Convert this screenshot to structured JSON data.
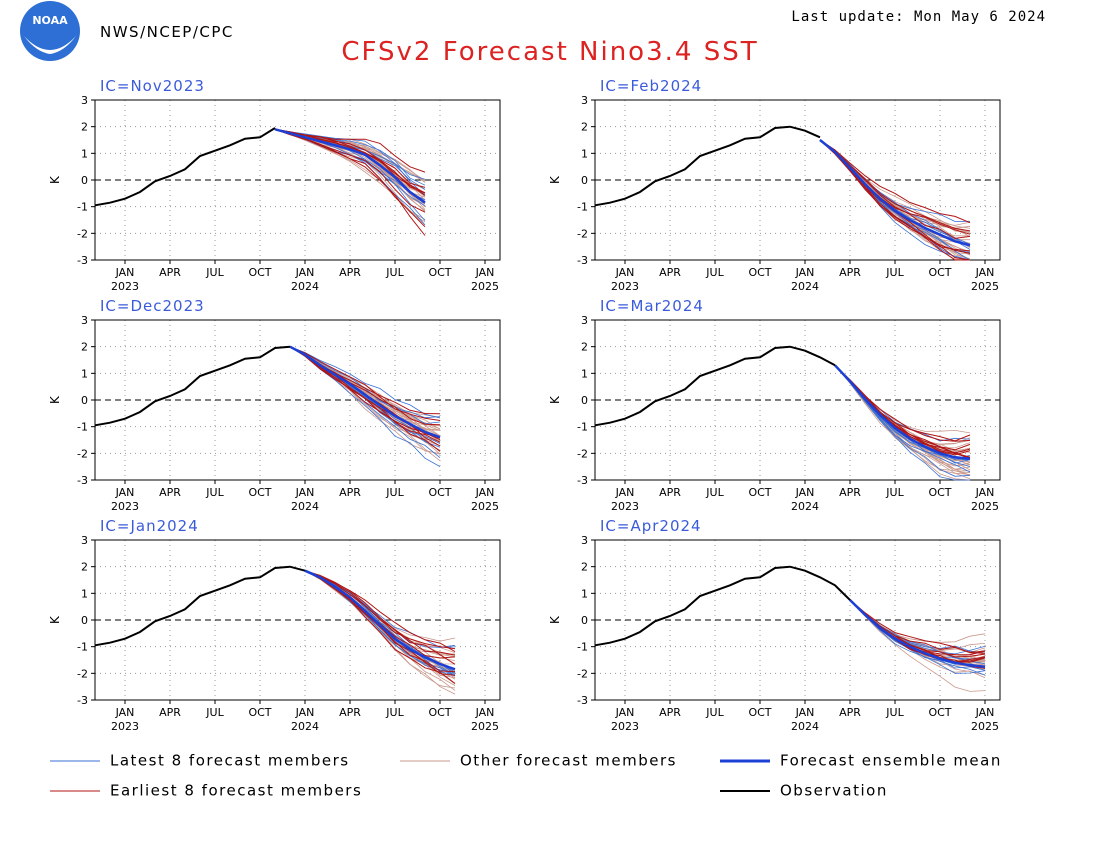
{
  "header": {
    "agency": "NWS/NCEP/CPC",
    "last_update": "Last update: Mon May 6 2024",
    "title": "CFSv2 Forecast Nino3.4 SST",
    "logo_text": "NOAA"
  },
  "colors": {
    "title": "#dd2222",
    "ic_label": "#3b5bdb",
    "latest": "#3a72d6",
    "other": "#c99a8e",
    "earliest": "#b01515",
    "ensemble_mean": "#1c3fd6",
    "observation": "#000000"
  },
  "legend": {
    "latest": "Latest 8 forecast members",
    "other": "Other forecast members",
    "mean": "Forecast ensemble mean",
    "earliest": "Earliest 8 forecast members",
    "observation": "Observation"
  },
  "chart_data": {
    "type": "line",
    "ylabel": "K",
    "ylim": [
      -3,
      3
    ],
    "yticks": [
      "3",
      "2",
      "1",
      "0",
      "-1",
      "-2",
      "-3"
    ],
    "xtick_months": [
      "JAN",
      "APR",
      "JUL",
      "OCT",
      "JAN",
      "APR",
      "JUL",
      "OCT",
      "JAN"
    ],
    "xtick_years": [
      "2023",
      "2024",
      "2025"
    ],
    "observation": {
      "months": [
        "2022-11",
        "2022-12",
        "2023-01",
        "2023-02",
        "2023-03",
        "2023-04",
        "2023-05",
        "2023-06",
        "2023-07",
        "2023-08",
        "2023-09",
        "2023-10",
        "2023-11",
        "2023-12",
        "2024-01",
        "2024-02",
        "2024-03",
        "2024-04"
      ],
      "values": [
        -0.95,
        -0.85,
        -0.7,
        -0.45,
        -0.05,
        0.15,
        0.4,
        0.9,
        1.1,
        1.3,
        1.55,
        1.6,
        1.95,
        2.0,
        1.85,
        1.6,
        1.3,
        0.75
      ]
    },
    "panels": [
      {
        "ic": "IC=Nov2023",
        "mean": [
          1.9,
          1.75,
          1.6,
          1.45,
          1.3,
          1.15,
          0.95,
          0.55,
          0.1,
          -0.45,
          -0.85
        ]
      },
      {
        "ic": "IC=Feb2024",
        "mean": [
          1.5,
          1.05,
          0.45,
          -0.15,
          -0.7,
          -1.15,
          -1.5,
          -1.8,
          -2.05,
          -2.3,
          -2.45
        ]
      },
      {
        "ic": "IC=Dec2023",
        "mean": [
          2.0,
          1.7,
          1.3,
          0.95,
          0.6,
          0.2,
          -0.2,
          -0.6,
          -0.9,
          -1.2,
          -1.4
        ]
      },
      {
        "ic": "IC=Mar2024",
        "mean": [
          1.3,
          0.7,
          0.05,
          -0.55,
          -1.05,
          -1.45,
          -1.75,
          -2.0,
          -2.15,
          -2.2
        ]
      },
      {
        "ic": "IC=Jan2024",
        "mean": [
          1.85,
          1.6,
          1.25,
          0.85,
          0.35,
          -0.2,
          -0.7,
          -1.1,
          -1.4,
          -1.65,
          -1.85
        ]
      },
      {
        "ic": "IC=Apr2024",
        "mean": [
          0.75,
          0.2,
          -0.3,
          -0.7,
          -1.0,
          -1.25,
          -1.45,
          -1.6,
          -1.7,
          -1.75
        ]
      }
    ]
  }
}
